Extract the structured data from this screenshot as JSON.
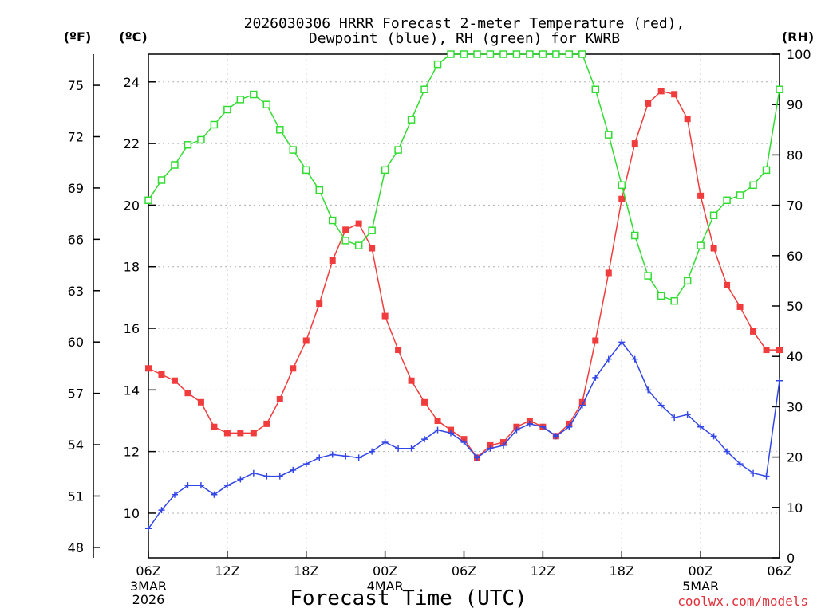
{
  "chart_data": {
    "type": "line",
    "title": [
      "2026030306 HRRR Forecast 2-meter Temperature (red),",
      "Dewpoint (blue), RH (green) for KWRB"
    ],
    "xlabel": "Forecast Time (UTC)",
    "credit": "coolwx.com/models",
    "units": {
      "left_outer": "(ºF)",
      "left_inner": "(ºC)",
      "right": "(RH)"
    },
    "x_range_hours": [
      0,
      48
    ],
    "y_celsius_range": [
      8.55,
      24.9
    ],
    "y_rh_range": [
      0,
      100
    ],
    "celsius_ticks": [
      10,
      12,
      14,
      16,
      18,
      20,
      22,
      24
    ],
    "fahrenheit_ticks": [
      48,
      51,
      54,
      57,
      60,
      63,
      66,
      69,
      72,
      75
    ],
    "rh_ticks": [
      0,
      10,
      20,
      30,
      40,
      50,
      60,
      70,
      80,
      90,
      100
    ],
    "x_ticks": [
      {
        "hour": 0,
        "label": "06Z",
        "date": [
          "3MAR",
          "2026"
        ]
      },
      {
        "hour": 6,
        "label": "12Z"
      },
      {
        "hour": 12,
        "label": "18Z"
      },
      {
        "hour": 18,
        "label": "00Z",
        "date": [
          "4MAR"
        ]
      },
      {
        "hour": 24,
        "label": "06Z"
      },
      {
        "hour": 30,
        "label": "12Z"
      },
      {
        "hour": 36,
        "label": "18Z"
      },
      {
        "hour": 42,
        "label": "00Z",
        "date": [
          "5MAR"
        ]
      },
      {
        "hour": 48,
        "label": "06Z"
      }
    ],
    "series": [
      {
        "name": "Temperature",
        "axis": "celsius",
        "color": "#f03c3c",
        "marker": "filled-square",
        "values": [
          14.7,
          14.5,
          14.3,
          13.9,
          13.6,
          12.8,
          12.6,
          12.6,
          12.6,
          12.9,
          13.7,
          14.7,
          15.6,
          16.8,
          18.2,
          19.2,
          19.4,
          18.6,
          16.4,
          15.3,
          14.3,
          13.6,
          13.0,
          12.7,
          12.4,
          11.8,
          12.2,
          12.3,
          12.8,
          13.0,
          12.8,
          12.5,
          12.9,
          13.6,
          15.6,
          17.8,
          20.2,
          22.0,
          23.3,
          23.7,
          23.6,
          22.8,
          20.3,
          18.6,
          17.4,
          16.7,
          15.9,
          15.3,
          15.3
        ]
      },
      {
        "name": "Dewpoint",
        "axis": "celsius",
        "color": "#3246e6",
        "marker": "plus",
        "values": [
          9.5,
          10.1,
          10.6,
          10.9,
          10.9,
          10.6,
          10.9,
          11.1,
          11.3,
          11.2,
          11.2,
          11.4,
          11.6,
          11.8,
          11.9,
          11.85,
          11.8,
          12.0,
          12.3,
          12.1,
          12.1,
          12.4,
          12.7,
          12.6,
          12.3,
          11.8,
          12.1,
          12.2,
          12.7,
          12.9,
          12.8,
          12.5,
          12.8,
          13.5,
          14.4,
          15.0,
          15.55,
          15.0,
          14.0,
          13.5,
          13.1,
          13.2,
          12.8,
          12.5,
          12.0,
          11.6,
          11.3,
          11.2,
          14.3
        ]
      },
      {
        "name": "RH",
        "axis": "rh",
        "color": "#32dc32",
        "marker": "open-square",
        "values": [
          71,
          75,
          78,
          82,
          83,
          86,
          89,
          91,
          92,
          90,
          85,
          81,
          77,
          73,
          67,
          63,
          62,
          65,
          77,
          81,
          87,
          93,
          98,
          100,
          100,
          100,
          100,
          100,
          100,
          100,
          100,
          100,
          100,
          100,
          93,
          84,
          74,
          64,
          56,
          52,
          51,
          55,
          62,
          68,
          71,
          72,
          74,
          77,
          93
        ]
      }
    ]
  }
}
